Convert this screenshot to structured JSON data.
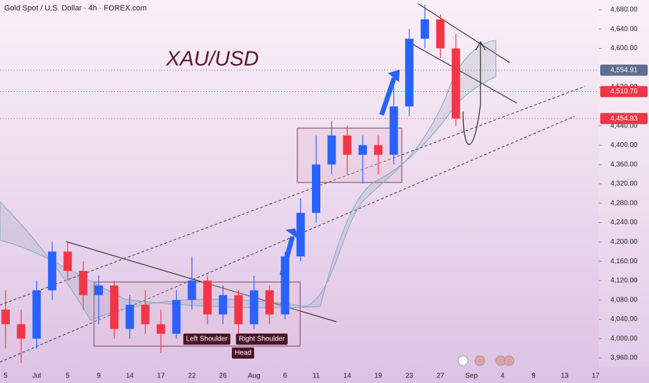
{
  "chart_data": {
    "type": "candlestick",
    "title": "Gold Spot / U.S. Dollar · 4h · FOREX.com",
    "annotation": "XAU/USD",
    "pattern_labels": [
      "Left Shoulder",
      "Right Shoulder",
      "Head"
    ],
    "categories": [
      "5",
      null,
      "Jul",
      null,
      "5",
      null,
      "9",
      null,
      "14",
      null,
      "17",
      null,
      "22",
      null,
      "26",
      null,
      "Aug",
      null,
      "6",
      null,
      "11",
      null,
      "14",
      null,
      "19",
      null,
      "23",
      null,
      "27",
      null,
      "Sep",
      null,
      "4",
      null,
      "9",
      null,
      "13",
      null,
      "17"
    ],
    "open": [
      4060,
      4030,
      4000,
      4100,
      4180,
      4140,
      4090,
      4110,
      4020,
      4070,
      4030,
      4010,
      4080,
      4120,
      4050,
      4090,
      4030,
      4100,
      4050,
      4170,
      4260,
      4360,
      4420,
      4380,
      4400,
      4380,
      4480,
      4620,
      4660,
      4600,
      null,
      null,
      null,
      null,
      null,
      null,
      null,
      null,
      null
    ],
    "high": [
      4100,
      4060,
      4120,
      4200,
      4200,
      4160,
      4130,
      4120,
      4090,
      4100,
      4060,
      4100,
      4170,
      4130,
      4110,
      4100,
      4130,
      4110,
      4180,
      4290,
      4420,
      4450,
      4440,
      4420,
      4420,
      4520,
      4640,
      4690,
      4670,
      4630,
      null,
      null,
      null,
      null,
      null,
      null,
      null,
      null,
      null
    ],
    "low": [
      3980,
      3950,
      3980,
      4080,
      4120,
      4060,
      4030,
      4000,
      4000,
      4010,
      3970,
      4000,
      4060,
      4030,
      4030,
      4000,
      4020,
      4030,
      4040,
      4160,
      4240,
      4340,
      4340,
      4320,
      4340,
      4360,
      4460,
      4600,
      4580,
      4440,
      null,
      null,
      null,
      null,
      null,
      null,
      null,
      null,
      null
    ],
    "close": [
      4030,
      4000,
      4100,
      4180,
      4140,
      4090,
      4110,
      4020,
      4070,
      4030,
      4010,
      4080,
      4120,
      4050,
      4090,
      4030,
      4100,
      4050,
      4170,
      4260,
      4360,
      4420,
      4380,
      4400,
      4380,
      4480,
      4620,
      4660,
      4600,
      4454.93,
      null,
      null,
      null,
      null,
      null,
      null,
      null,
      null,
      null
    ],
    "up_color": "#2962ff",
    "down_color": "#f23645",
    "ylim": [
      3940,
      4700
    ],
    "yticks": [
      {
        "value": 3960,
        "label": "3,960.00"
      },
      {
        "value": 4000,
        "label": "4,000.00"
      },
      {
        "value": 4040,
        "label": "4,040.00"
      },
      {
        "value": 4080,
        "label": "4,080.00"
      },
      {
        "value": 4120,
        "label": "4,120.00"
      },
      {
        "value": 4160,
        "label": "4,160.00"
      },
      {
        "value": 4200,
        "label": "4,200.00"
      },
      {
        "value": 4240,
        "label": "4,240.00"
      },
      {
        "value": 4280,
        "label": "4,280.00"
      },
      {
        "value": 4320,
        "label": "4,320.00"
      },
      {
        "value": 4360,
        "label": "4,360.00"
      },
      {
        "value": 4400,
        "label": "4,400.00"
      },
      {
        "value": 4440,
        "label": "4,440.00"
      },
      {
        "value": 4520,
        "label": "4,520.00"
      },
      {
        "value": 4600,
        "label": "4,600.00"
      },
      {
        "value": 4640,
        "label": "4,640.00"
      },
      {
        "value": 4680,
        "label": "4,680.00"
      }
    ],
    "price_tags": [
      {
        "value": 4554.91,
        "label": "4,554.91",
        "color": "#5d6e8f"
      },
      {
        "value": 4510.76,
        "label": "4,510.76",
        "color": "#f23645"
      },
      {
        "value": 4454.93,
        "label": "4,454.93",
        "color": "#f23645"
      }
    ]
  }
}
